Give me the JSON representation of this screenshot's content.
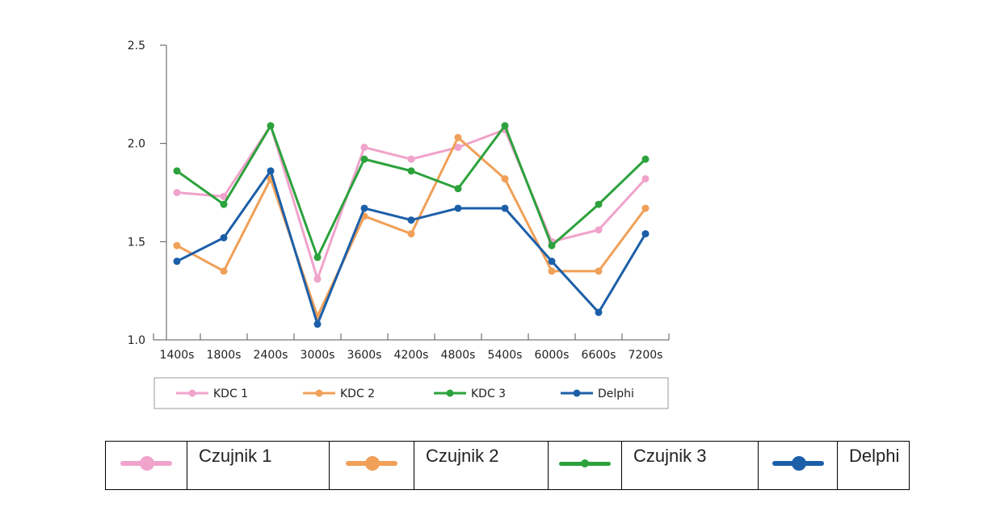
{
  "chart_data": {
    "type": "line",
    "categories": [
      "1400s",
      "1800s",
      "2400s",
      "3000s",
      "3600s",
      "4200s",
      "4800s",
      "5400s",
      "6000s",
      "6600s",
      "7200s"
    ],
    "yticks": [
      "1.0",
      "1.5",
      "2.0",
      "2.5"
    ],
    "ylim": [
      1.0,
      2.5
    ],
    "grid": false,
    "legend_position": "bottom",
    "series": [
      {
        "name": "KDC 1",
        "color": "#F0A3CB",
        "values": [
          1.75,
          1.73,
          2.09,
          1.31,
          1.98,
          1.92,
          1.98,
          2.07,
          1.5,
          1.56,
          1.82
        ]
      },
      {
        "name": "KDC 2",
        "color": "#F0A058",
        "values": [
          1.48,
          1.35,
          1.82,
          1.12,
          1.63,
          1.54,
          2.03,
          1.82,
          1.35,
          1.35,
          1.67
        ]
      },
      {
        "name": "KDC 3",
        "color": "#2CA23C",
        "values": [
          1.86,
          1.69,
          2.09,
          1.42,
          1.92,
          1.86,
          1.77,
          2.09,
          1.48,
          1.69,
          1.92
        ]
      },
      {
        "name": "Delphi",
        "color": "#1C5FA8",
        "values": [
          1.4,
          1.52,
          1.86,
          1.08,
          1.67,
          1.61,
          1.67,
          1.67,
          1.4,
          1.14,
          1.54
        ]
      }
    ]
  },
  "bottom_legend": {
    "items": [
      {
        "label": "Czujnik 1",
        "color": "#F0A3CB"
      },
      {
        "label": "Czujnik 2",
        "color": "#F0A058"
      },
      {
        "label": "Czujnik 3",
        "color": "#2CA23C"
      },
      {
        "label": "Delphi",
        "color": "#1C5FA8"
      }
    ]
  }
}
